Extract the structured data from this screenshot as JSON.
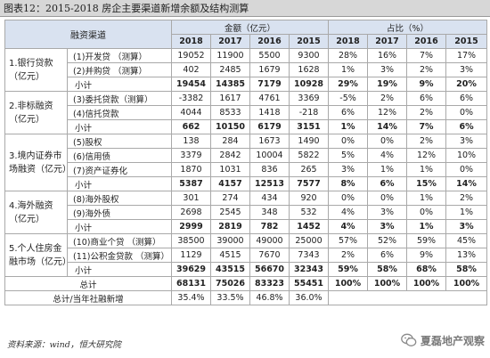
{
  "title": "图表12：2015-2018 房企主要渠道新增余额及结构测算",
  "headers": {
    "channel": "融资渠道",
    "amount": "金额（亿元）",
    "share": "占比（%）",
    "years": [
      "2018",
      "2017",
      "2016",
      "2015"
    ]
  },
  "groups": [
    {
      "label": "1.银行贷款（亿元）",
      "items": [
        {
          "label": "(1)开发贷 （测算）",
          "amount": [
            "19052",
            "11900",
            "5500",
            "9300"
          ],
          "share": [
            "28%",
            "16%",
            "7%",
            "17%"
          ]
        },
        {
          "label": "(2)并购贷 （测算）",
          "amount": [
            "402",
            "2485",
            "1679",
            "1628"
          ],
          "share": [
            "1%",
            "3%",
            "2%",
            "3%"
          ]
        }
      ],
      "subtotal": {
        "label": "小计",
        "amount": [
          "19454",
          "14385",
          "7179",
          "10928"
        ],
        "share": [
          "29%",
          "19%",
          "9%",
          "20%"
        ]
      }
    },
    {
      "label": "2.非标融资（亿元）",
      "items": [
        {
          "label": "(3)委托贷款（测算）",
          "amount": [
            "-3382",
            "1617",
            "4761",
            "3369"
          ],
          "share": [
            "-5%",
            "2%",
            "6%",
            "6%"
          ]
        },
        {
          "label": "(4)信托贷款",
          "amount": [
            "4044",
            "8533",
            "1418",
            "-218"
          ],
          "share": [
            "6%",
            "12%",
            "2%",
            "0%"
          ]
        }
      ],
      "subtotal": {
        "label": "小计",
        "amount": [
          "662",
          "10150",
          "6179",
          "3151"
        ],
        "share": [
          "1%",
          "14%",
          "7%",
          "6%"
        ]
      }
    },
    {
      "label": "3.境内证券市场融资（亿元）",
      "items": [
        {
          "label": "(5)股权",
          "amount": [
            "138",
            "284",
            "1673",
            "1490"
          ],
          "share": [
            "0%",
            "0%",
            "2%",
            "3%"
          ]
        },
        {
          "label": "(6)信用债",
          "amount": [
            "3379",
            "2842",
            "10004",
            "5822"
          ],
          "share": [
            "5%",
            "4%",
            "12%",
            "10%"
          ]
        },
        {
          "label": "(7)资产证券化",
          "amount": [
            "1870",
            "1031",
            "836",
            "265"
          ],
          "share": [
            "3%",
            "1%",
            "1%",
            "0%"
          ]
        }
      ],
      "subtotal": {
        "label": "小计",
        "amount": [
          "5387",
          "4157",
          "12513",
          "7577"
        ],
        "share": [
          "8%",
          "6%",
          "15%",
          "14%"
        ]
      }
    },
    {
      "label": "4.海外融资（亿元）",
      "items": [
        {
          "label": "(8)海外股权",
          "amount": [
            "301",
            "274",
            "434",
            "920"
          ],
          "share": [
            "0%",
            "0%",
            "1%",
            "2%"
          ]
        },
        {
          "label": "(9)海外债",
          "amount": [
            "2698",
            "2545",
            "348",
            "532"
          ],
          "share": [
            "4%",
            "3%",
            "0%",
            "1%"
          ]
        }
      ],
      "subtotal": {
        "label": "小计",
        "amount": [
          "2999",
          "2819",
          "782",
          "1452"
        ],
        "share": [
          "4%",
          "3%",
          "1%",
          "3%"
        ]
      }
    },
    {
      "label": "5.个人住房金融市场（亿元）",
      "items": [
        {
          "label": "(10)商业个贷 （测算）",
          "amount": [
            "38500",
            "39000",
            "49000",
            "25000"
          ],
          "share": [
            "57%",
            "52%",
            "59%",
            "45%"
          ]
        },
        {
          "label": "(11)公积金贷款 （测算）",
          "amount": [
            "1129",
            "4515",
            "7670",
            "7343"
          ],
          "share": [
            "2%",
            "6%",
            "9%",
            "13%"
          ]
        }
      ],
      "subtotal": {
        "label": "小计",
        "amount": [
          "39629",
          "43515",
          "56670",
          "32343"
        ],
        "share": [
          "59%",
          "58%",
          "68%",
          "58%"
        ]
      }
    }
  ],
  "total": {
    "label": "总计",
    "amount": [
      "68131",
      "75026",
      "83323",
      "55451"
    ],
    "share": [
      "100%",
      "100%",
      "100%",
      "100%"
    ]
  },
  "ratio": {
    "label": "总计/当年社融新增",
    "values": [
      "35.4%",
      "33.5%",
      "46.8%",
      "36.0%"
    ]
  },
  "source": "资料来源：wind，恒大研究院",
  "watermark": "夏磊地产观察"
}
